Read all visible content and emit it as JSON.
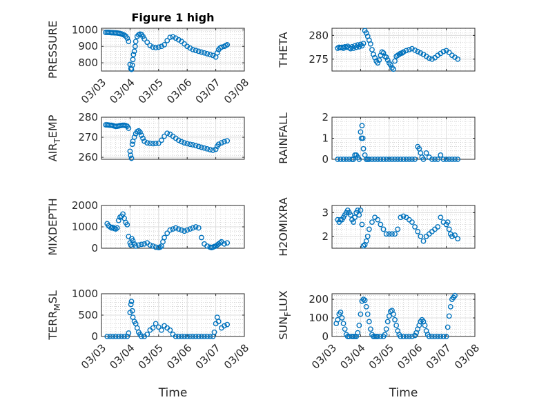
{
  "colors": {
    "marker": "#0072bd",
    "axis": "#262626",
    "grid": "#dcdcdc",
    "minor_grid": "#bfbfbf"
  },
  "chart_data": [
    {
      "type": "scatter",
      "title": "Figure 1 high",
      "ylabel": "PRESSURE",
      "xlabel": "",
      "grid": true,
      "ylim": [
        750,
        1010
      ],
      "yticks": [
        800,
        900,
        1000
      ],
      "xlim": [
        "03/03",
        "03/08"
      ],
      "xticks": [
        "03/03",
        "03/04",
        "03/05",
        "03/06",
        "03/07",
        "03/08"
      ],
      "x_format": "mm/dd",
      "x": [
        3.15,
        3.2,
        3.25,
        3.3,
        3.35,
        3.4,
        3.45,
        3.5,
        3.55,
        3.6,
        3.65,
        3.7,
        3.75,
        3.8,
        3.85,
        3.9,
        3.95,
        4.0,
        4.03,
        4.05,
        4.08,
        4.1,
        4.12,
        4.15,
        4.18,
        4.2,
        4.25,
        4.3,
        4.35,
        4.4,
        4.45,
        4.5,
        4.6,
        4.7,
        4.8,
        4.9,
        5.0,
        5.1,
        5.2,
        5.3,
        5.4,
        5.5,
        5.6,
        5.7,
        5.8,
        5.9,
        6.0,
        6.1,
        6.2,
        6.3,
        6.4,
        6.5,
        6.6,
        6.7,
        6.8,
        6.9,
        7.0,
        7.05,
        7.1,
        7.15,
        7.2,
        7.3,
        7.35,
        7.4
      ],
      "y": [
        985,
        985,
        985,
        984,
        983,
        983,
        982,
        982,
        981,
        980,
        978,
        976,
        972,
        968,
        962,
        950,
        930,
        790,
        765,
        760,
        785,
        820,
        850,
        870,
        900,
        930,
        960,
        970,
        975,
        972,
        960,
        945,
        925,
        905,
        895,
        892,
        895,
        900,
        910,
        935,
        955,
        958,
        950,
        940,
        930,
        915,
        900,
        890,
        880,
        875,
        870,
        865,
        860,
        855,
        850,
        845,
        835,
        860,
        880,
        890,
        895,
        900,
        905,
        910
      ],
      "series": [
        {
          "values_ref": "y"
        }
      ]
    },
    {
      "type": "scatter",
      "title": "",
      "ylabel": "THETA",
      "xlabel": "",
      "grid": true,
      "ylim": [
        272.5,
        281.5
      ],
      "yticks": [
        275,
        280
      ],
      "xlim": [
        "03/03",
        "03/08"
      ],
      "x_format": "mm/dd",
      "x": [
        3.2,
        3.25,
        3.3,
        3.35,
        3.4,
        3.45,
        3.5,
        3.55,
        3.6,
        3.65,
        3.7,
        3.75,
        3.8,
        3.85,
        3.9,
        3.95,
        4.0,
        4.05,
        4.1,
        4.15,
        4.2,
        4.25,
        4.3,
        4.35,
        4.4,
        4.45,
        4.5,
        4.55,
        4.6,
        4.65,
        4.7,
        4.75,
        4.8,
        4.85,
        4.9,
        4.95,
        5.0,
        5.05,
        5.1,
        5.15,
        5.2,
        5.25,
        5.3,
        5.35,
        5.4,
        5.45,
        5.5,
        5.6,
        5.7,
        5.8,
        5.9,
        6.0,
        6.1,
        6.2,
        6.3,
        6.4,
        6.5,
        6.6,
        6.7,
        6.8,
        6.9,
        7.0,
        7.1,
        7.2,
        7.3,
        7.4
      ],
      "y": [
        277.3,
        277.5,
        277.4,
        277.5,
        277.3,
        277.6,
        277.5,
        277.7,
        277.4,
        277.2,
        277.6,
        277.3,
        277.8,
        277.5,
        278.0,
        277.6,
        278.1,
        277.8,
        278.3,
        281.0,
        280.5,
        279.8,
        279.0,
        278.2,
        277.0,
        276.0,
        275.3,
        274.6,
        274.2,
        274.8,
        275.8,
        276.5,
        276.3,
        275.6,
        275.4,
        274.8,
        274.2,
        273.8,
        273.2,
        272.9,
        274.6,
        275.6,
        275.8,
        276.0,
        276.2,
        276.3,
        276.5,
        276.8,
        277.0,
        277.2,
        276.9,
        276.6,
        276.3,
        276.0,
        275.6,
        275.2,
        275.0,
        275.3,
        275.8,
        276.2,
        276.6,
        276.8,
        276.4,
        275.8,
        275.4,
        275.0
      ]
    },
    {
      "type": "scatter",
      "title": "",
      "ylabel": "AIR",
      "ylabel_sub": "T",
      "ylabel_suffix": "EMP",
      "xlabel": "",
      "grid": true,
      "ylim": [
        259,
        280
      ],
      "yticks": [
        260,
        270,
        280
      ],
      "xlim": [
        "03/03",
        "03/08"
      ],
      "x_format": "mm/dd",
      "x": [
        3.15,
        3.2,
        3.25,
        3.3,
        3.35,
        3.4,
        3.45,
        3.5,
        3.55,
        3.6,
        3.65,
        3.7,
        3.75,
        3.8,
        3.85,
        3.9,
        3.95,
        4.0,
        4.02,
        4.05,
        4.08,
        4.1,
        4.15,
        4.2,
        4.25,
        4.3,
        4.35,
        4.4,
        4.45,
        4.5,
        4.6,
        4.7,
        4.8,
        4.9,
        5.0,
        5.1,
        5.2,
        5.3,
        5.4,
        5.5,
        5.6,
        5.7,
        5.8,
        5.9,
        6.0,
        6.1,
        6.2,
        6.3,
        6.4,
        6.5,
        6.6,
        6.7,
        6.8,
        6.9,
        7.0,
        7.05,
        7.1,
        7.2,
        7.3,
        7.4
      ],
      "y": [
        276.2,
        276.2,
        276.1,
        276.0,
        276.0,
        275.8,
        275.6,
        275.4,
        275.5,
        275.6,
        275.8,
        275.9,
        276.0,
        276.0,
        275.8,
        275.5,
        274.5,
        263.0,
        261.0,
        259.5,
        266.5,
        268.0,
        270.0,
        271.8,
        272.8,
        273.2,
        272.5,
        271.0,
        269.5,
        268.0,
        267.2,
        267.0,
        266.8,
        266.9,
        267.0,
        268.5,
        270.5,
        272.0,
        271.5,
        270.5,
        269.5,
        268.5,
        267.8,
        267.2,
        266.8,
        266.5,
        266.2,
        265.8,
        265.4,
        265.0,
        264.6,
        264.2,
        263.8,
        263.5,
        264.0,
        265.5,
        266.5,
        267.2,
        267.8,
        268.2
      ]
    },
    {
      "type": "scatter",
      "title": "",
      "ylabel": "RAINFALL",
      "xlabel": "",
      "grid": true,
      "ylim": [
        0,
        2
      ],
      "yticks": [
        0,
        1,
        2
      ],
      "xlim": [
        "03/03",
        "03/08"
      ],
      "x_format": "mm/dd",
      "x": [
        3.2,
        3.3,
        3.4,
        3.5,
        3.6,
        3.7,
        3.75,
        3.8,
        3.85,
        3.9,
        3.95,
        4.0,
        4.03,
        4.05,
        4.08,
        4.1,
        4.15,
        4.2,
        4.25,
        4.3,
        4.4,
        4.5,
        4.6,
        4.7,
        4.8,
        4.9,
        5.0,
        5.1,
        5.2,
        5.3,
        5.4,
        5.5,
        5.6,
        5.7,
        5.8,
        5.9,
        6.0,
        6.05,
        6.1,
        6.15,
        6.2,
        6.3,
        6.4,
        6.5,
        6.6,
        6.7,
        6.8,
        6.9,
        7.0,
        7.1,
        7.2,
        7.3,
        7.4
      ],
      "y": [
        0,
        0,
        0,
        0,
        0,
        0,
        0,
        0.2,
        0.2,
        0.1,
        0,
        1.3,
        1.0,
        1.6,
        1.0,
        0.5,
        0.2,
        0,
        0,
        0,
        0,
        0,
        0,
        0,
        0,
        0,
        0,
        0,
        0,
        0,
        0,
        0,
        0,
        0,
        0,
        0,
        0.6,
        0.5,
        0.3,
        0.1,
        0,
        0.3,
        0.1,
        0,
        0,
        0,
        0.2,
        0,
        0,
        0,
        0,
        0,
        0
      ]
    },
    {
      "type": "scatter",
      "title": "",
      "ylabel": "MIXDEPTH",
      "xlabel": "",
      "grid": true,
      "ylim": [
        0,
        2000
      ],
      "yticks": [
        0,
        1000,
        2000
      ],
      "xlim": [
        "03/03",
        "03/08"
      ],
      "x_format": "mm/dd",
      "x": [
        3.2,
        3.25,
        3.3,
        3.35,
        3.4,
        3.45,
        3.5,
        3.55,
        3.6,
        3.65,
        3.7,
        3.75,
        3.8,
        3.85,
        3.9,
        3.95,
        4.0,
        4.03,
        4.06,
        4.1,
        4.15,
        4.2,
        4.3,
        4.4,
        4.5,
        4.6,
        4.7,
        4.8,
        4.9,
        5.0,
        5.05,
        5.1,
        5.15,
        5.2,
        5.3,
        5.4,
        5.5,
        5.6,
        5.7,
        5.8,
        5.9,
        6.0,
        6.1,
        6.2,
        6.3,
        6.4,
        6.5,
        6.6,
        6.7,
        6.8,
        6.85,
        6.9,
        6.95,
        7.0,
        7.05,
        7.1,
        7.15,
        7.2,
        7.3,
        7.4
      ],
      "y": [
        1150,
        1050,
        1000,
        950,
        980,
        920,
        900,
        950,
        1300,
        1450,
        1500,
        1600,
        1400,
        1200,
        1100,
        550,
        250,
        150,
        450,
        350,
        200,
        100,
        150,
        180,
        200,
        250,
        150,
        100,
        50,
        30,
        50,
        100,
        300,
        500,
        700,
        850,
        900,
        950,
        900,
        850,
        800,
        850,
        900,
        950,
        1000,
        950,
        500,
        200,
        100,
        50,
        30,
        50,
        80,
        100,
        150,
        200,
        250,
        300,
        200,
        250
      ]
    },
    {
      "type": "scatter",
      "title": "",
      "ylabel": "H2OMIXRA",
      "xlabel": "",
      "grid": true,
      "ylim": [
        1.5,
        3.3
      ],
      "yticks": [
        2,
        3
      ],
      "xlim": [
        "03/03",
        "03/08"
      ],
      "x_format": "mm/dd",
      "x": [
        3.2,
        3.25,
        3.3,
        3.35,
        3.4,
        3.45,
        3.5,
        3.55,
        3.6,
        3.65,
        3.7,
        3.75,
        3.8,
        3.85,
        3.9,
        3.95,
        4.0,
        4.05,
        4.1,
        4.15,
        4.2,
        4.25,
        4.3,
        4.4,
        4.5,
        4.6,
        4.7,
        4.8,
        4.9,
        5.0,
        5.1,
        5.2,
        5.3,
        5.4,
        5.5,
        5.6,
        5.7,
        5.8,
        5.9,
        6.0,
        6.1,
        6.2,
        6.3,
        6.4,
        6.5,
        6.6,
        6.7,
        6.8,
        6.9,
        7.0,
        7.05,
        7.1,
        7.15,
        7.2,
        7.3,
        7.4
      ],
      "y": [
        2.7,
        2.6,
        2.7,
        2.7,
        2.8,
        2.9,
        3.0,
        3.1,
        3.0,
        2.9,
        2.7,
        2.6,
        2.8,
        3.0,
        3.1,
        2.9,
        3.1,
        2.5,
        1.6,
        1.65,
        1.8,
        2.0,
        2.3,
        2.6,
        2.8,
        2.7,
        2.5,
        2.3,
        2.1,
        2.1,
        2.1,
        2.1,
        2.3,
        2.8,
        2.85,
        2.8,
        2.7,
        2.6,
        2.4,
        2.2,
        2.0,
        1.8,
        2.0,
        2.1,
        2.2,
        2.3,
        2.4,
        2.8,
        2.6,
        2.5,
        2.6,
        2.3,
        2.1,
        2.0,
        2.05,
        1.9
      ]
    },
    {
      "type": "scatter",
      "title": "",
      "ylabel": "TERR",
      "ylabel_sub": "M",
      "ylabel_suffix": "SL",
      "xlabel": "Time",
      "grid": true,
      "ylim": [
        0,
        1000
      ],
      "yticks": [
        0,
        500,
        1000
      ],
      "xlim": [
        "03/03",
        "03/08"
      ],
      "xticks": [
        "03/03",
        "03/04",
        "03/05",
        "03/06",
        "03/07",
        "03/08"
      ],
      "x_format": "mm/dd",
      "x": [
        3.2,
        3.3,
        3.4,
        3.5,
        3.6,
        3.7,
        3.8,
        3.9,
        3.95,
        4.0,
        4.03,
        4.05,
        4.08,
        4.1,
        4.15,
        4.2,
        4.25,
        4.3,
        4.35,
        4.4,
        4.5,
        4.6,
        4.7,
        4.8,
        4.9,
        5.0,
        5.1,
        5.2,
        5.3,
        5.4,
        5.5,
        5.6,
        5.7,
        5.8,
        5.9,
        6.0,
        6.1,
        6.2,
        6.3,
        6.4,
        6.5,
        6.6,
        6.7,
        6.8,
        6.9,
        6.95,
        7.0,
        7.05,
        7.1,
        7.2,
        7.3,
        7.4
      ],
      "y": [
        0,
        0,
        0,
        0,
        0,
        0,
        0,
        0,
        80,
        560,
        750,
        820,
        600,
        450,
        350,
        300,
        200,
        100,
        50,
        0,
        0,
        50,
        150,
        200,
        300,
        220,
        150,
        250,
        200,
        150,
        50,
        0,
        0,
        0,
        0,
        0,
        0,
        0,
        0,
        0,
        0,
        0,
        0,
        0,
        0,
        100,
        300,
        450,
        350,
        200,
        250,
        280
      ]
    },
    {
      "type": "scatter",
      "title": "",
      "ylabel": "SUN",
      "ylabel_sub": "F",
      "ylabel_suffix": "LUX",
      "xlabel": "Time",
      "grid": true,
      "ylim": [
        0,
        230
      ],
      "yticks": [
        0,
        100,
        200
      ],
      "xlim": [
        "03/03",
        "03/08"
      ],
      "xticks": [
        "03/03",
        "03/04",
        "03/05",
        "03/06",
        "03/07",
        "03/08"
      ],
      "x_format": "mm/dd",
      "x": [
        3.15,
        3.2,
        3.25,
        3.3,
        3.35,
        3.4,
        3.45,
        3.5,
        3.55,
        3.6,
        3.7,
        3.75,
        3.8,
        3.85,
        3.9,
        3.95,
        4.0,
        4.05,
        4.1,
        4.15,
        4.2,
        4.25,
        4.3,
        4.35,
        4.4,
        4.45,
        4.5,
        4.55,
        4.6,
        4.7,
        4.8,
        4.85,
        4.9,
        4.95,
        5.0,
        5.05,
        5.1,
        5.15,
        5.2,
        5.25,
        5.3,
        5.35,
        5.4,
        5.5,
        5.6,
        5.7,
        5.8,
        5.9,
        5.95,
        6.0,
        6.05,
        6.1,
        6.15,
        6.2,
        6.25,
        6.3,
        6.35,
        6.4,
        6.5,
        6.6,
        6.7,
        6.8,
        6.9,
        7.0,
        7.05,
        7.1,
        7.15,
        7.2,
        7.25,
        7.3
      ],
      "y": [
        70,
        90,
        120,
        130,
        100,
        70,
        40,
        10,
        0,
        0,
        0,
        0,
        0,
        0,
        20,
        60,
        120,
        190,
        200,
        195,
        160,
        120,
        80,
        40,
        10,
        0,
        0,
        0,
        0,
        0,
        0,
        10,
        40,
        80,
        110,
        135,
        140,
        120,
        90,
        60,
        30,
        10,
        0,
        0,
        0,
        0,
        0,
        5,
        20,
        40,
        60,
        80,
        90,
        80,
        60,
        30,
        10,
        0,
        0,
        0,
        0,
        0,
        0,
        0,
        50,
        110,
        160,
        200,
        210,
        220
      ]
    }
  ]
}
